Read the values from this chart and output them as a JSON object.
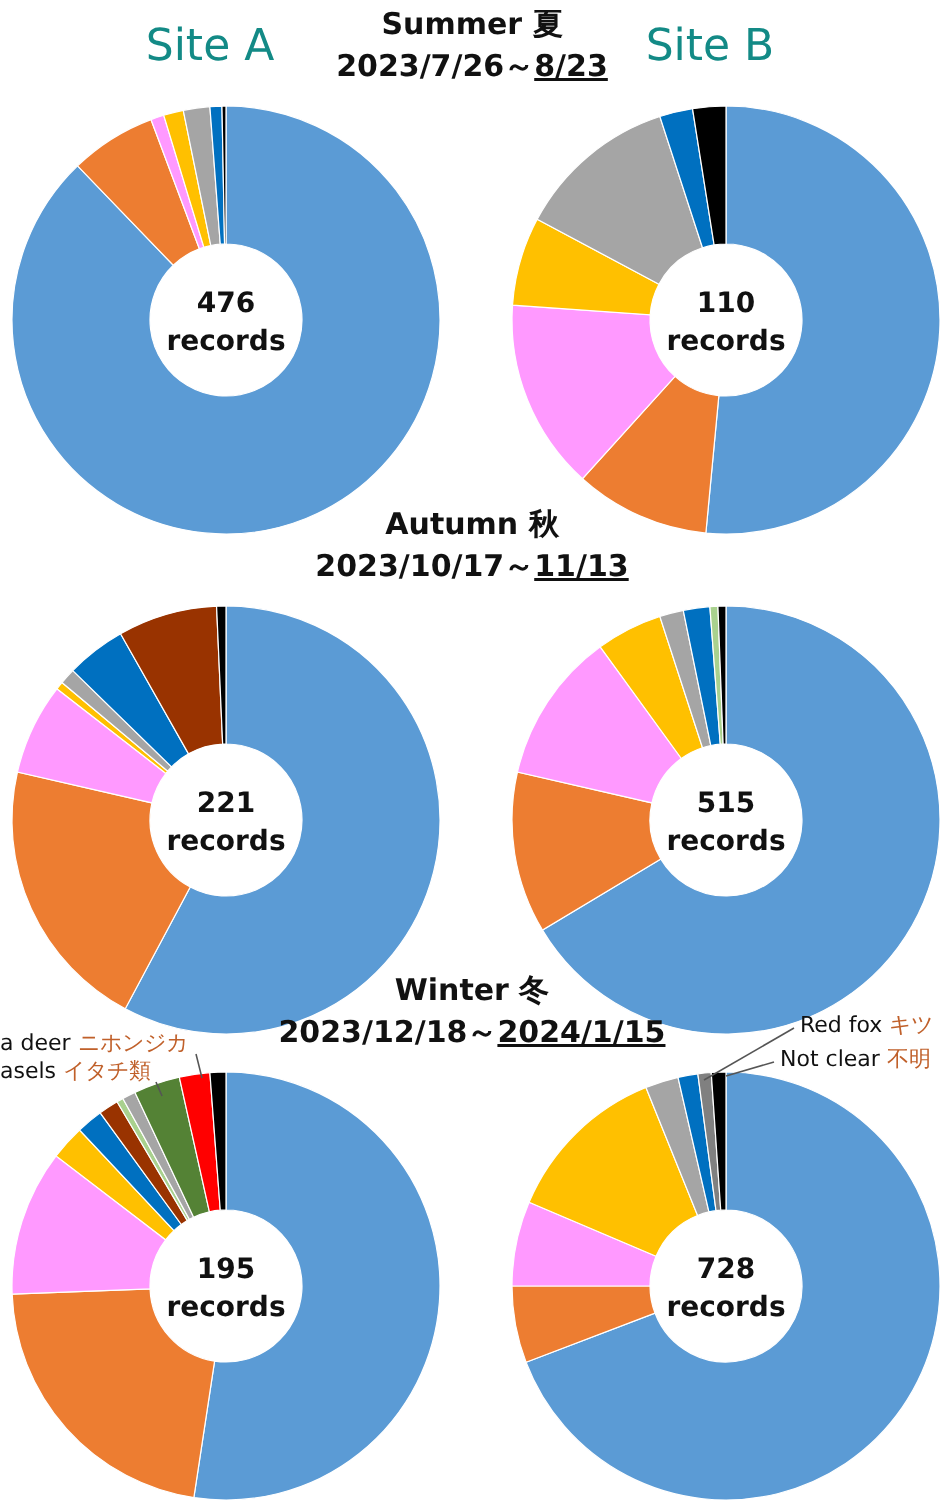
{
  "chart_data": [
    {
      "type": "donut",
      "title": "Site A",
      "subtitle": "Summer 夏\n2023/7/26～8/23",
      "categories": [
        null,
        null,
        null,
        null,
        null,
        null,
        null
      ],
      "values": [
        87.8,
        6.5,
        1,
        1.5,
        2,
        0.9,
        0.3
      ],
      "colors": [
        "#5b9bd5",
        "#ed7d31",
        "#ff99ff",
        "#ffc000",
        "#a5a5a5",
        "#0070c0",
        "#000000"
      ],
      "annotations": [
        "476 records"
      ]
    },
    {
      "type": "donut",
      "title": "Site B",
      "categories": [
        null,
        null,
        null,
        null,
        null,
        null,
        null
      ],
      "values": [
        51.5,
        10.2,
        14.4,
        6.7,
        12.2,
        2.5,
        2.5
      ],
      "colors": [
        "#5b9bd5",
        "#ed7d31",
        "#ff99ff",
        "#ffc000",
        "#a5a5a5",
        "#0070c0",
        "#000000"
      ],
      "annotations": [
        "110 records"
      ]
    },
    {
      "type": "donut",
      "subtitle": "Autumn 秋\n2023/10/17～11/13",
      "categories": [
        null,
        null,
        null,
        null,
        null,
        null,
        null,
        null
      ],
      "values": [
        57.8,
        20.8,
        6.9,
        0.6,
        1.2,
        4.5,
        7.5,
        0.7
      ],
      "colors": [
        "#5b9bd5",
        "#ed7d31",
        "#ff99ff",
        "#ffc000",
        "#a5a5a5",
        "#0070c0",
        "#993300",
        "#000000"
      ],
      "annotations": [
        "221 records"
      ]
    },
    {
      "type": "donut",
      "categories": [
        null,
        null,
        null,
        null,
        null,
        null,
        null,
        null
      ],
      "values": [
        66.4,
        12.2,
        11.4,
        5,
        1.8,
        2,
        0.6,
        0.6
      ],
      "colors": [
        "#5b9bd5",
        "#ed7d31",
        "#ff99ff",
        "#ffc000",
        "#a5a5a5",
        "#0070c0",
        "#a9d18e",
        "#000000"
      ],
      "annotations": [
        "515 records"
      ]
    },
    {
      "type": "donut",
      "subtitle": "Winter 冬\n2023/12/18～2024/1/15",
      "categories": [
        null,
        null,
        null,
        null,
        null,
        null,
        null,
        null,
        null,
        null,
        null
      ],
      "values": [
        52.4,
        22,
        11,
        2.6,
        2,
        1.5,
        0.5,
        1,
        3.5,
        2.3,
        1.2
      ],
      "colors": [
        "#5b9bd5",
        "#ed7d31",
        "#ff99ff",
        "#ffc000",
        "#0070c0",
        "#993300",
        "#a9d18e",
        "#a5a5a5",
        "#548235",
        "#ff0000",
        "#000000"
      ],
      "annotations": [
        "195 records",
        "a deer ニホンジカ",
        "asels イタチ類"
      ]
    },
    {
      "type": "donut",
      "categories": [
        null,
        null,
        null,
        null,
        null,
        null,
        null,
        null
      ],
      "values": [
        69.2,
        5.8,
        6.4,
        12.5,
        2.5,
        1.5,
        1,
        1.1
      ],
      "colors": [
        "#5b9bd5",
        "#ed7d31",
        "#ff99ff",
        "#ffc000",
        "#a5a5a5",
        "#0070c0",
        "#808080",
        "#000000"
      ],
      "annotations": [
        "728 records",
        "Red fox キツ",
        "Not clear 不明"
      ]
    }
  ]
}
